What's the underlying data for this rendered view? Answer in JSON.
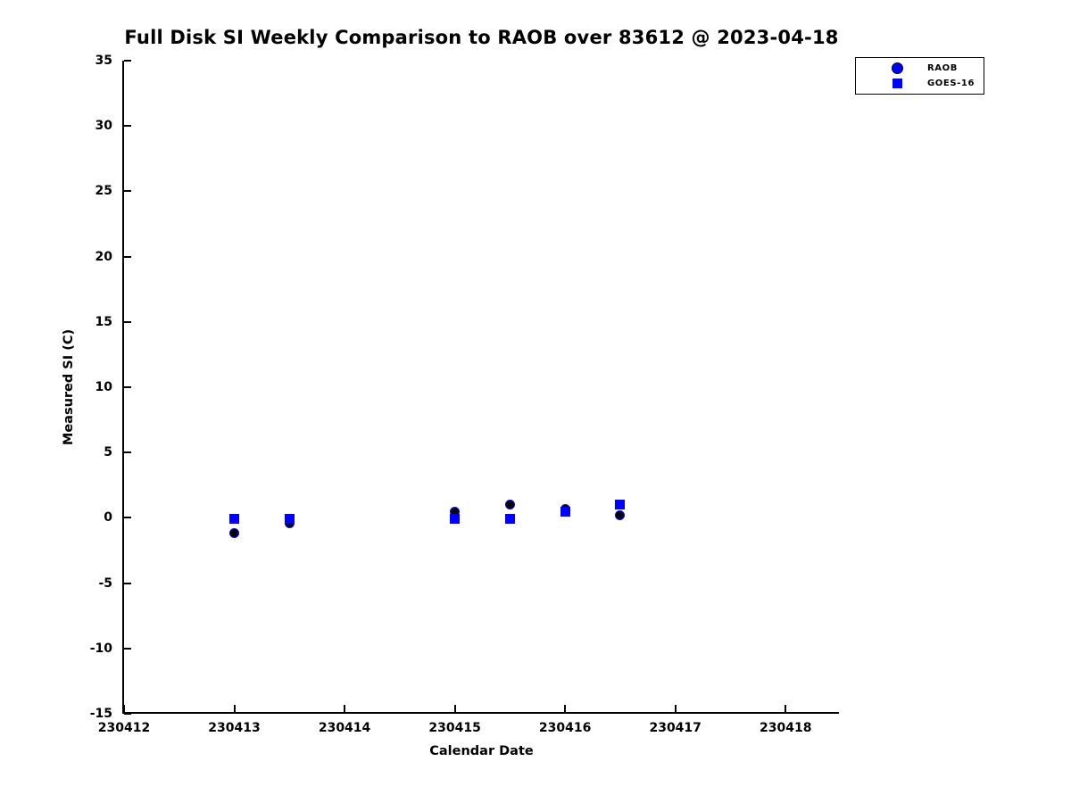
{
  "title": "Full Disk SI Weekly Comparison to RAOB over 83612 @ 2023-04-18",
  "colors": {
    "blue": "#0000ff",
    "black": "#000000",
    "background": "#ffffff"
  },
  "chart_data": {
    "type": "scatter",
    "title": "Full Disk SI Weekly Comparison to RAOB over 83612 @ 2023-04-18",
    "xlabel": "Calendar Date",
    "ylabel": "Measured SI (C)",
    "xlim": [
      230412,
      230418.5
    ],
    "ylim": [
      -15,
      35
    ],
    "x_ticks": [
      230412,
      230413,
      230414,
      230415,
      230416,
      230417,
      230418
    ],
    "y_ticks": [
      35,
      30,
      25,
      20,
      15,
      10,
      5,
      0,
      -5,
      -10,
      -15
    ],
    "grid": false,
    "legend_position": "top-right-outside",
    "series": [
      {
        "name": "RAOB",
        "marker": "circle",
        "face_color": "#000000",
        "edge_color": "#0000ff",
        "legend_face_color": "#0000ff",
        "legend_edge_color": "#000000",
        "points": [
          {
            "x": 230413.0,
            "y": -1.2
          },
          {
            "x": 230413.5,
            "y": -0.4
          },
          {
            "x": 230415.0,
            "y": 0.5
          },
          {
            "x": 230415.5,
            "y": 1.0
          },
          {
            "x": 230416.0,
            "y": 0.7
          },
          {
            "x": 230416.5,
            "y": 0.2
          }
        ]
      },
      {
        "name": "GOES-16",
        "marker": "square",
        "face_color": "#0000ff",
        "edge_color": "#0000ff",
        "points": [
          {
            "x": 230413.0,
            "y": -0.1
          },
          {
            "x": 230413.5,
            "y": -0.1
          },
          {
            "x": 230415.0,
            "y": -0.1
          },
          {
            "x": 230415.5,
            "y": -0.1
          },
          {
            "x": 230416.0,
            "y": 0.45
          },
          {
            "x": 230416.5,
            "y": 1.0
          }
        ]
      }
    ]
  }
}
